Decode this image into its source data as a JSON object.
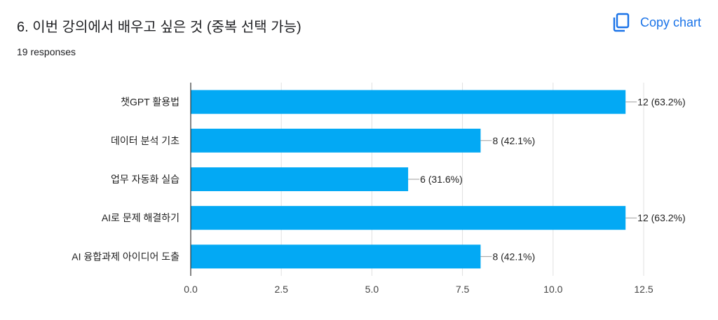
{
  "question": {
    "title": "6. 이번 강의에서 배우고 싶은 것 (중복 선택 가능)",
    "responses": "19 responses"
  },
  "toolbar": {
    "copy_label": "Copy chart"
  },
  "icons": {
    "copy": "copy-icon"
  },
  "colors": {
    "bar": "#03a9f4",
    "accent": "#1a73e8",
    "grid": "#e0e0e0",
    "axis": "#333333"
  },
  "chart_data": {
    "type": "bar",
    "orientation": "horizontal",
    "categories": [
      "챗GPT 활용법",
      "데이터 분석 기초",
      "업무 자동화 실습",
      "AI로 문제 해결하기",
      "AI 융합과제 아이디어 도출"
    ],
    "values": [
      12,
      8,
      6,
      12,
      8
    ],
    "value_labels": [
      "12 (63.2%)",
      "8 (42.1%)",
      "6 (31.6%)",
      "12 (63.2%)",
      "8 (42.1%)"
    ],
    "xticks": [
      0,
      2.5,
      5,
      7.5,
      10,
      12.5
    ],
    "xtick_labels": [
      "0.0",
      "2.5",
      "5.0",
      "7.5",
      "10.0",
      "12.5"
    ],
    "xlim": [
      0,
      12.5
    ],
    "grid": true
  }
}
